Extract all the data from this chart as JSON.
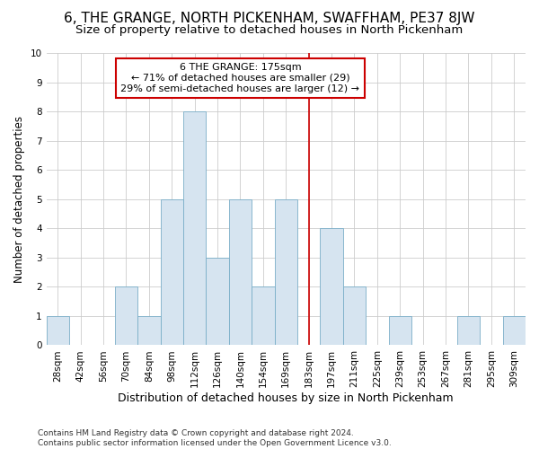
{
  "title": "6, THE GRANGE, NORTH PICKENHAM, SWAFFHAM, PE37 8JW",
  "subtitle": "Size of property relative to detached houses in North Pickenham",
  "xlabel": "Distribution of detached houses by size in North Pickenham",
  "ylabel": "Number of detached properties",
  "bin_labels": [
    "28sqm",
    "42sqm",
    "56sqm",
    "70sqm",
    "84sqm",
    "98sqm",
    "112sqm",
    "126sqm",
    "140sqm",
    "154sqm",
    "169sqm",
    "183sqm",
    "197sqm",
    "211sqm",
    "225sqm",
    "239sqm",
    "253sqm",
    "267sqm",
    "281sqm",
    "295sqm",
    "309sqm"
  ],
  "bar_heights": [
    1,
    0,
    0,
    2,
    1,
    5,
    8,
    3,
    5,
    2,
    5,
    0,
    4,
    2,
    0,
    1,
    0,
    0,
    1,
    0,
    1
  ],
  "bar_color": "#d6e4f0",
  "bar_edge_color": "#7aaec8",
  "vline_x_index": 11,
  "vline_color": "#cc0000",
  "annotation_text": "6 THE GRANGE: 175sqm\n← 71% of detached houses are smaller (29)\n29% of semi-detached houses are larger (12) →",
  "annotation_box_color": "#ffffff",
  "annotation_box_edge": "#cc0000",
  "ylim": [
    0,
    10
  ],
  "yticks": [
    0,
    1,
    2,
    3,
    4,
    5,
    6,
    7,
    8,
    9,
    10
  ],
  "bg_color": "#ffffff",
  "plot_bg_color": "#ffffff",
  "grid_color": "#cccccc",
  "footer": "Contains HM Land Registry data © Crown copyright and database right 2024.\nContains public sector information licensed under the Open Government Licence v3.0.",
  "title_fontsize": 11,
  "subtitle_fontsize": 9.5,
  "xlabel_fontsize": 9,
  "ylabel_fontsize": 8.5,
  "tick_fontsize": 7.5,
  "footer_fontsize": 6.5,
  "annotation_fontsize": 8
}
